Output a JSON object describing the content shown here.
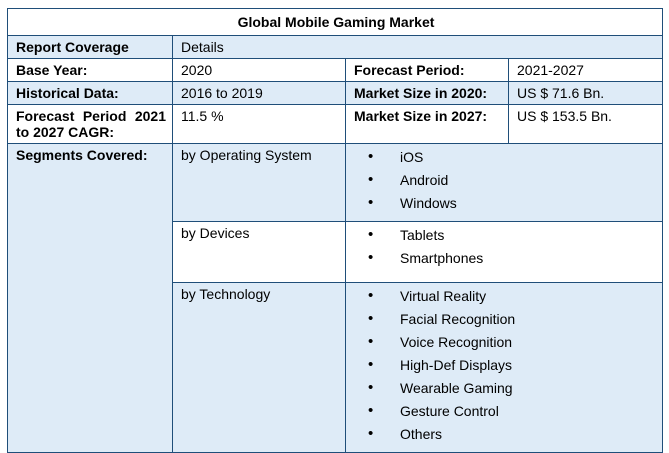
{
  "table": {
    "title": "Global Mobile Gaming Market",
    "coverage": {
      "label": "Report Coverage",
      "value": "Details"
    },
    "info_rows": [
      {
        "label1": "Base Year:",
        "value1": "2020",
        "label2": "Forecast Period:",
        "value2": "2021-2027"
      },
      {
        "label1": "Historical Data:",
        "value1": "2016 to 2019",
        "label2": "Market Size in 2020:",
        "value2": "US $ 71.6 Bn."
      },
      {
        "label1": "Forecast Period 2021 to 2027 CAGR:",
        "value1": "11.5 %",
        "label2": "Market Size in 2027:",
        "value2": "US $ 153.5 Bn."
      }
    ],
    "segments": {
      "label": "Segments Covered:",
      "groups": [
        {
          "category": "by Operating System",
          "items": [
            "iOS",
            "Android",
            "Windows"
          ]
        },
        {
          "category": "by Devices",
          "items": [
            "Tablets",
            "Smartphones"
          ]
        },
        {
          "category": "by Technology",
          "items": [
            "Virtual Reality",
            "Facial Recognition",
            "Voice Recognition",
            "High-Def Displays",
            "Wearable Gaming",
            "Gesture Control",
            "Others"
          ]
        }
      ]
    },
    "colors": {
      "border": "#1F4E79",
      "shaded_row": "#DEEBF7",
      "plain_row": "#FFFFFF"
    }
  }
}
